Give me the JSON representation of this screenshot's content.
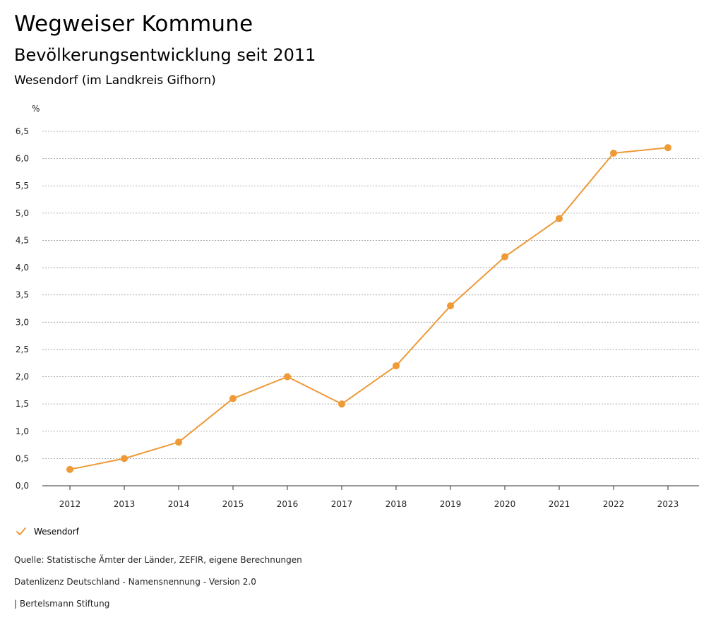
{
  "header": {
    "title": "Wegweiser Kommune",
    "subtitle": "Bevölkerungsentwicklung seit 2011",
    "region": "Wesendorf (im Landkreis Gifhorn)"
  },
  "chart_data": {
    "type": "line",
    "title": "Bevölkerungsentwicklung seit 2011",
    "ylabel": "%",
    "xlabel": "",
    "ylim": [
      0,
      6.5
    ],
    "yticks": [
      "0,0",
      "0,5",
      "1,0",
      "1,5",
      "2,0",
      "2,5",
      "3,0",
      "3,5",
      "4,0",
      "4,5",
      "5,0",
      "5,5",
      "6,0",
      "6,5"
    ],
    "categories": [
      "2012",
      "2013",
      "2014",
      "2015",
      "2016",
      "2017",
      "2018",
      "2019",
      "2020",
      "2021",
      "2022",
      "2023"
    ],
    "series": [
      {
        "name": "Wesendorf",
        "color": "#ed9a37",
        "values": [
          0.3,
          0.5,
          0.8,
          1.6,
          2.0,
          1.5,
          2.2,
          3.3,
          4.2,
          4.9,
          6.1,
          6.2
        ]
      }
    ],
    "grid": true,
    "legend": "bottom-left"
  },
  "legend": {
    "label": "Wesendorf",
    "color": "#ed9a37"
  },
  "footer": {
    "source": "Quelle: Statistische Ämter der Länder, ZEFIR, eigene Berechnungen",
    "license": "Datenlizenz Deutschland - Namensnennung - Version 2.0",
    "publisher": "| Bertelsmann Stiftung"
  }
}
